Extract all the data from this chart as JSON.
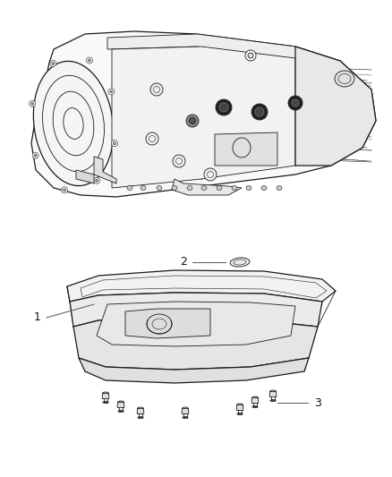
{
  "background_color": "#ffffff",
  "figsize": [
    4.38,
    5.33
  ],
  "dpi": 100,
  "line_color": "#1a1a1a",
  "label_color": "#111111",
  "label1_text": "1",
  "label2_text": "2",
  "label3_text": "3",
  "label_fontsize": 9,
  "callout_color": "#555555",
  "lw_main": 0.9,
  "lw_mid": 0.6,
  "lw_thin": 0.4
}
